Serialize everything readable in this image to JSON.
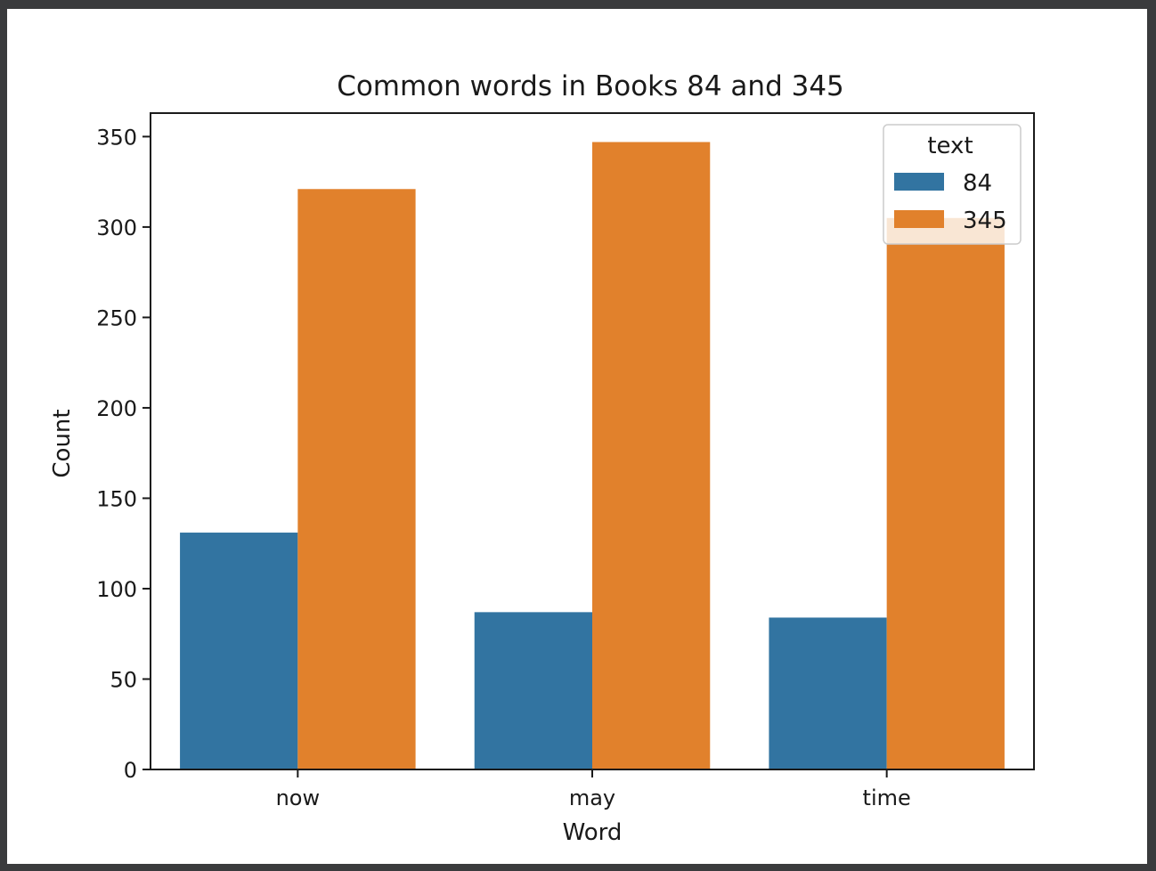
{
  "chart_data": {
    "type": "bar",
    "title": "Common words in Books 84 and 345",
    "xlabel": "Word",
    "ylabel": "Count",
    "categories": [
      "now",
      "may",
      "time"
    ],
    "series": [
      {
        "name": "84",
        "values": [
          131,
          87,
          84
        ],
        "color": "#3274a1"
      },
      {
        "name": "345",
        "values": [
          321,
          347,
          305
        ],
        "color": "#e1812c"
      }
    ],
    "ylim": [
      0,
      363
    ],
    "yticks": [
      0,
      50,
      100,
      150,
      200,
      250,
      300,
      350
    ],
    "legend": {
      "title": "text",
      "placement": "top-right"
    },
    "grid": false
  }
}
